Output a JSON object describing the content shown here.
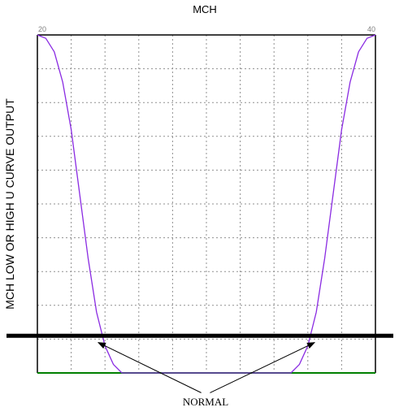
{
  "chart_data": {
    "type": "line",
    "title": "MCH",
    "ylabel": "MCH LOW OR HIGH U CURVE OUTPUT",
    "xlabel": "",
    "x_tick_labels": [
      "20",
      "40"
    ],
    "xlim": [
      20,
      40
    ],
    "ylim": [
      0,
      1
    ],
    "grid": true,
    "grid_divisions": {
      "x": 10,
      "y": 10
    },
    "series": [
      {
        "color": "#8a2be2",
        "points": [
          [
            20,
            1.0
          ],
          [
            20.5,
            0.99
          ],
          [
            21,
            0.95
          ],
          [
            21.5,
            0.86
          ],
          [
            22,
            0.72
          ],
          [
            22.5,
            0.53
          ],
          [
            23,
            0.34
          ],
          [
            23.5,
            0.18
          ],
          [
            24,
            0.08
          ],
          [
            24.5,
            0.025
          ],
          [
            25,
            0.0
          ],
          [
            26,
            0.0
          ],
          [
            27,
            0.0
          ],
          [
            28,
            0.0
          ],
          [
            29,
            0.0
          ],
          [
            30,
            0.0
          ],
          [
            31,
            0.0
          ],
          [
            32,
            0.0
          ],
          [
            33,
            0.0
          ],
          [
            34,
            0.0
          ],
          [
            35,
            0.0
          ],
          [
            35.5,
            0.025
          ],
          [
            36,
            0.08
          ],
          [
            36.5,
            0.18
          ],
          [
            37,
            0.34
          ],
          [
            37.5,
            0.53
          ],
          [
            38,
            0.72
          ],
          [
            38.5,
            0.86
          ],
          [
            39,
            0.95
          ],
          [
            39.5,
            0.99
          ],
          [
            40,
            1.0
          ]
        ]
      }
    ],
    "threshold_line": {
      "y": 0.11,
      "color": "#000000"
    },
    "baseline_color": "#008000",
    "annotation": {
      "text": "NORMAL",
      "arrow_targets": [
        [
          23.6,
          0.09
        ],
        [
          36.4,
          0.09
        ]
      ]
    },
    "colors": {
      "ylabel": "#1a1aff",
      "frame": "#000000",
      "grid": "#909090",
      "tick": "#808080"
    }
  }
}
